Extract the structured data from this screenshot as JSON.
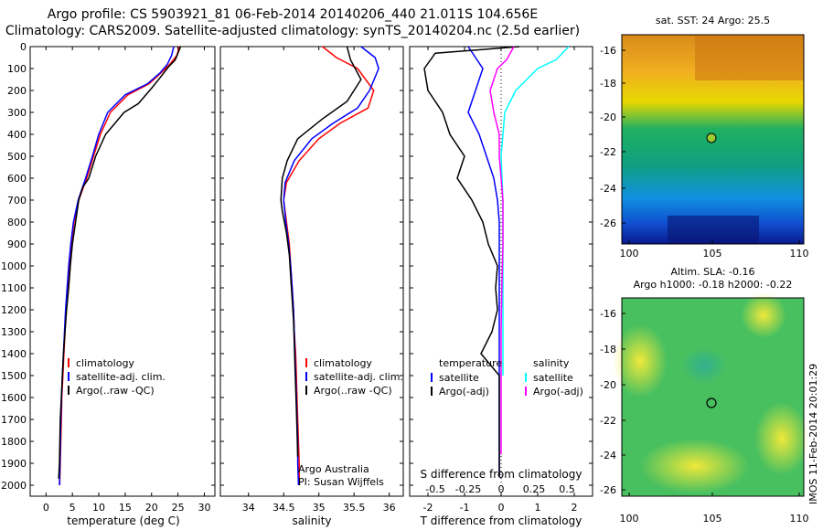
{
  "title_line1": "Argo profile: CS 5903921_81 06-Feb-2014 20140206_440 21.011S 104.656E",
  "title_line2": "Climatology: CARS2009. Satellite-adjusted climatology: synTS_20140204.nc (2.5d earlier)",
  "colors": {
    "climatology": "#ff0000",
    "satellite": "#0000ff",
    "argo": "#000000",
    "sat_salinity": "#00ffff",
    "argo_salinity": "#ff00ff"
  },
  "depth_ticks": [
    "0",
    "100",
    "200",
    "300",
    "400",
    "500",
    "600",
    "700",
    "800",
    "900",
    "1000",
    "1100",
    "1200",
    "1300",
    "1400",
    "1500",
    "1600",
    "1700",
    "1800",
    "1900",
    "2000"
  ],
  "temp_ticks": [
    "0",
    "5",
    "10",
    "15",
    "20",
    "25",
    "30"
  ],
  "sal_ticks": [
    "34",
    "34.5",
    "35",
    "35.5",
    "36"
  ],
  "tdiff_ticks": [
    "-2",
    "-1",
    "0",
    "1",
    "2"
  ],
  "sdiff_ticks": [
    "-0.5",
    "-0.25",
    "0",
    "0.25",
    "0.5"
  ],
  "temp_xlabel": "temperature (deg C)",
  "sal_xlabel": "salinity",
  "diff_xlabel": "T difference from climatology",
  "sdiff_label": "S difference from climatology",
  "legend1": [
    "climatology",
    "satellite-adj. clim.",
    "Argo(..raw -QC)"
  ],
  "legend2": [
    "climatology",
    "satellite-adj. clim.",
    "Argo(..raw -QC)"
  ],
  "legend3": {
    "temperature": "temperature",
    "salinity": "salinity",
    "t_sat": "satellite",
    "t_argo": "Argo(-adj)",
    "s_sat": "satellite",
    "s_argo": "Argo(-adj)"
  },
  "credit1": "Argo Australia",
  "credit2": "PI: Susan Wijffels",
  "map1_title": "sat. SST: 24  Argo: 25.5",
  "map2_title1": "Altim. SLA: -0.16",
  "map2_title2": "Argo h1000: -0.18 h2000: -0.22",
  "map_lat_ticks": [
    "-16",
    "-18",
    "-20",
    "-22",
    "-24",
    "-26"
  ],
  "map_lon_ticks": [
    "100",
    "105",
    "110"
  ],
  "imos_stamp": "IMOS 11-Feb-2014 20:01:29",
  "chart_data": [
    {
      "type": "line",
      "ylabel": "",
      "xlabel": "temperature (deg C)",
      "xlim": [
        -3,
        32
      ],
      "ylim": [
        2050,
        0
      ],
      "series": [
        {
          "name": "climatology",
          "x": [
            25.3,
            24.8,
            23.5,
            21.8,
            19.5,
            15.5,
            12.2,
            10.3,
            9.0,
            7.7,
            6.2,
            5.3,
            4.8,
            4.4,
            4.1,
            3.8,
            3.6,
            3.4,
            3.2,
            3.0,
            2.9,
            2.7,
            2.6
          ],
          "y": [
            0,
            40,
            80,
            120,
            170,
            220,
            300,
            400,
            500,
            600,
            700,
            800,
            900,
            1000,
            1100,
            1200,
            1300,
            1400,
            1500,
            1600,
            1700,
            1900,
            2000
          ]
        },
        {
          "name": "satellite-adj. clim.",
          "x": [
            24.2,
            23.8,
            23.0,
            21.6,
            19.2,
            15.0,
            11.7,
            10.0,
            8.8,
            7.5,
            6.1,
            5.2,
            4.7,
            4.3,
            4.0,
            3.7,
            3.5,
            3.3,
            3.1,
            2.95,
            2.8,
            2.65,
            2.55
          ],
          "y": [
            0,
            40,
            80,
            120,
            170,
            220,
            300,
            400,
            500,
            600,
            700,
            800,
            900,
            1000,
            1100,
            1200,
            1300,
            1400,
            1500,
            1600,
            1700,
            1900,
            2000
          ]
        },
        {
          "name": "Argo(..raw -QC)",
          "x": [
            25.5,
            24.5,
            23.3,
            22.0,
            20.0,
            17.5,
            14.8,
            11.3,
            9.4,
            8.1,
            7.0,
            6.2,
            5.0,
            4.6,
            4.3,
            3.9,
            3.6,
            3.3,
            3.1,
            2.9,
            2.7,
            2.55,
            2.4
          ],
          "y": [
            0,
            60,
            90,
            130,
            190,
            260,
            300,
            400,
            500,
            600,
            640,
            700,
            900,
            1000,
            1100,
            1200,
            1300,
            1400,
            1500,
            1600,
            1700,
            1900,
            1970
          ]
        }
      ]
    },
    {
      "type": "line",
      "xlabel": "salinity",
      "xlim": [
        33.6,
        36.2
      ],
      "ylim": [
        2050,
        0
      ],
      "series": [
        {
          "name": "climatology",
          "x": [
            35.05,
            35.25,
            35.55,
            35.78,
            35.7,
            35.3,
            35.0,
            34.72,
            34.54,
            34.5,
            34.54,
            34.58,
            34.6,
            34.62,
            34.64,
            34.65,
            34.67,
            34.68,
            34.69,
            34.7,
            34.71,
            34.72,
            34.72
          ],
          "y": [
            0,
            50,
            100,
            200,
            280,
            350,
            420,
            520,
            620,
            700,
            800,
            900,
            1000,
            1100,
            1200,
            1300,
            1400,
            1500,
            1600,
            1700,
            1800,
            1900,
            2000
          ]
        },
        {
          "name": "satellite-adj. clim.",
          "x": [
            35.6,
            35.8,
            35.85,
            35.72,
            35.55,
            35.2,
            34.9,
            34.65,
            34.52,
            34.5,
            34.53,
            34.57,
            34.6,
            34.62,
            34.64,
            34.65,
            34.66,
            34.67,
            34.68,
            34.69,
            34.7,
            34.7,
            34.71
          ],
          "y": [
            0,
            50,
            100,
            200,
            280,
            350,
            420,
            520,
            620,
            700,
            800,
            900,
            1000,
            1100,
            1200,
            1300,
            1400,
            1500,
            1600,
            1700,
            1800,
            1900,
            2000
          ]
        },
        {
          "name": "Argo(..raw -QC)",
          "x": [
            35.4,
            35.45,
            35.6,
            35.4,
            35.05,
            34.7,
            34.55,
            34.48,
            34.46,
            34.48,
            34.54,
            34.58,
            34.6,
            34.62,
            34.64,
            34.65,
            34.66,
            34.67,
            34.68,
            34.69,
            34.7
          ],
          "y": [
            0,
            60,
            150,
            250,
            330,
            420,
            520,
            600,
            700,
            750,
            850,
            950,
            1050,
            1150,
            1250,
            1350,
            1450,
            1550,
            1650,
            1750,
            1870
          ]
        }
      ]
    },
    {
      "type": "line",
      "xlabel": "T difference from climatology",
      "xlim": [
        -2.5,
        2.5
      ],
      "ylim": [
        2050,
        0
      ],
      "series": [
        {
          "name": "temperature satellite",
          "x": [
            -0.9,
            -0.7,
            -0.5,
            -0.7,
            -0.9,
            -0.6,
            -0.4,
            -0.2,
            -0.1,
            -0.05,
            -0.05,
            -0.05,
            -0.05,
            -0.05,
            -0.05,
            -0.05,
            -0.05,
            -0.05
          ],
          "y": [
            0,
            50,
            100,
            200,
            300,
            400,
            500,
            600,
            700,
            800,
            900,
            1000,
            1200,
            1400,
            1600,
            1800,
            1900,
            1960
          ]
        },
        {
          "name": "temperature Argo(-adj)",
          "x": [
            0.5,
            -1.8,
            -2.1,
            -2.0,
            -1.6,
            -1.4,
            -1.0,
            -1.2,
            -0.8,
            -0.5,
            -0.35,
            -0.1,
            -0.15,
            -0.1,
            -0.25,
            -0.55,
            -0.05,
            -0.05,
            -0.05
          ],
          "y": [
            0,
            30,
            100,
            200,
            300,
            400,
            500,
            600,
            700,
            800,
            900,
            1000,
            1100,
            1200,
            1300,
            1400,
            1500,
            1700,
            1960
          ]
        },
        {
          "name": "salinity satellite",
          "x": [
            1.85,
            1.5,
            1.0,
            0.4,
            0.1,
            0.05,
            0.0,
            0.05,
            0.05,
            0.05,
            0.05,
            0.05
          ],
          "y": [
            0,
            60,
            100,
            200,
            300,
            400,
            500,
            700,
            900,
            1100,
            1300,
            1500
          ]
        },
        {
          "name": "salinity Argo(-adj)",
          "x": [
            0.35,
            0.15,
            -0.1,
            -0.3,
            -0.2,
            -0.05,
            -0.05,
            0.0,
            0.05,
            0.05,
            0.02,
            0.0,
            0.0,
            0.0,
            0.0
          ],
          "y": [
            0,
            60,
            100,
            200,
            300,
            400,
            500,
            600,
            700,
            900,
            1100,
            1300,
            1500,
            1700,
            1860
          ]
        }
      ]
    }
  ]
}
